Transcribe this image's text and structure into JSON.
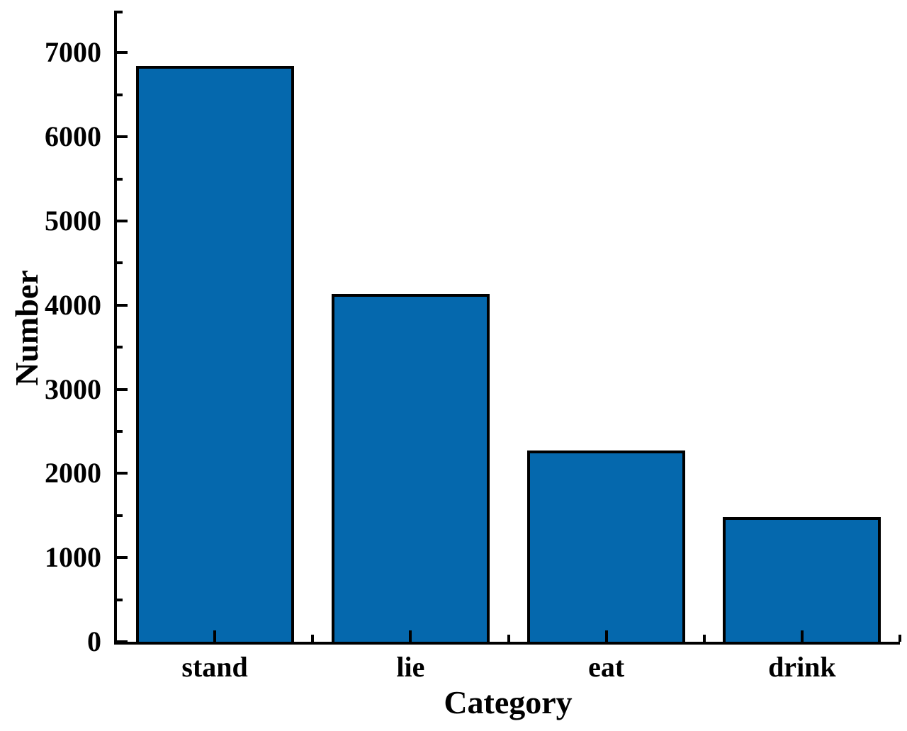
{
  "chart_data": {
    "type": "bar",
    "title": "",
    "categories": [
      "stand",
      "lie",
      "eat",
      "drink"
    ],
    "values": [
      6840,
      4130,
      2270,
      1480
    ],
    "xlabel": "Category",
    "ylabel": "Number",
    "ylim": [
      0,
      7500
    ],
    "ytick_labels": [
      "0",
      "1000",
      "2000",
      "3000",
      "4000",
      "5000",
      "6000",
      "7000"
    ],
    "ytick_major_step": 1000,
    "ytick_minor_step": 500,
    "grid": false,
    "legend": false,
    "bar_color": "#0568AD",
    "bar_edge_color": "#000000",
    "axis_color": "#000000",
    "background_color": "#FFFFFF"
  }
}
